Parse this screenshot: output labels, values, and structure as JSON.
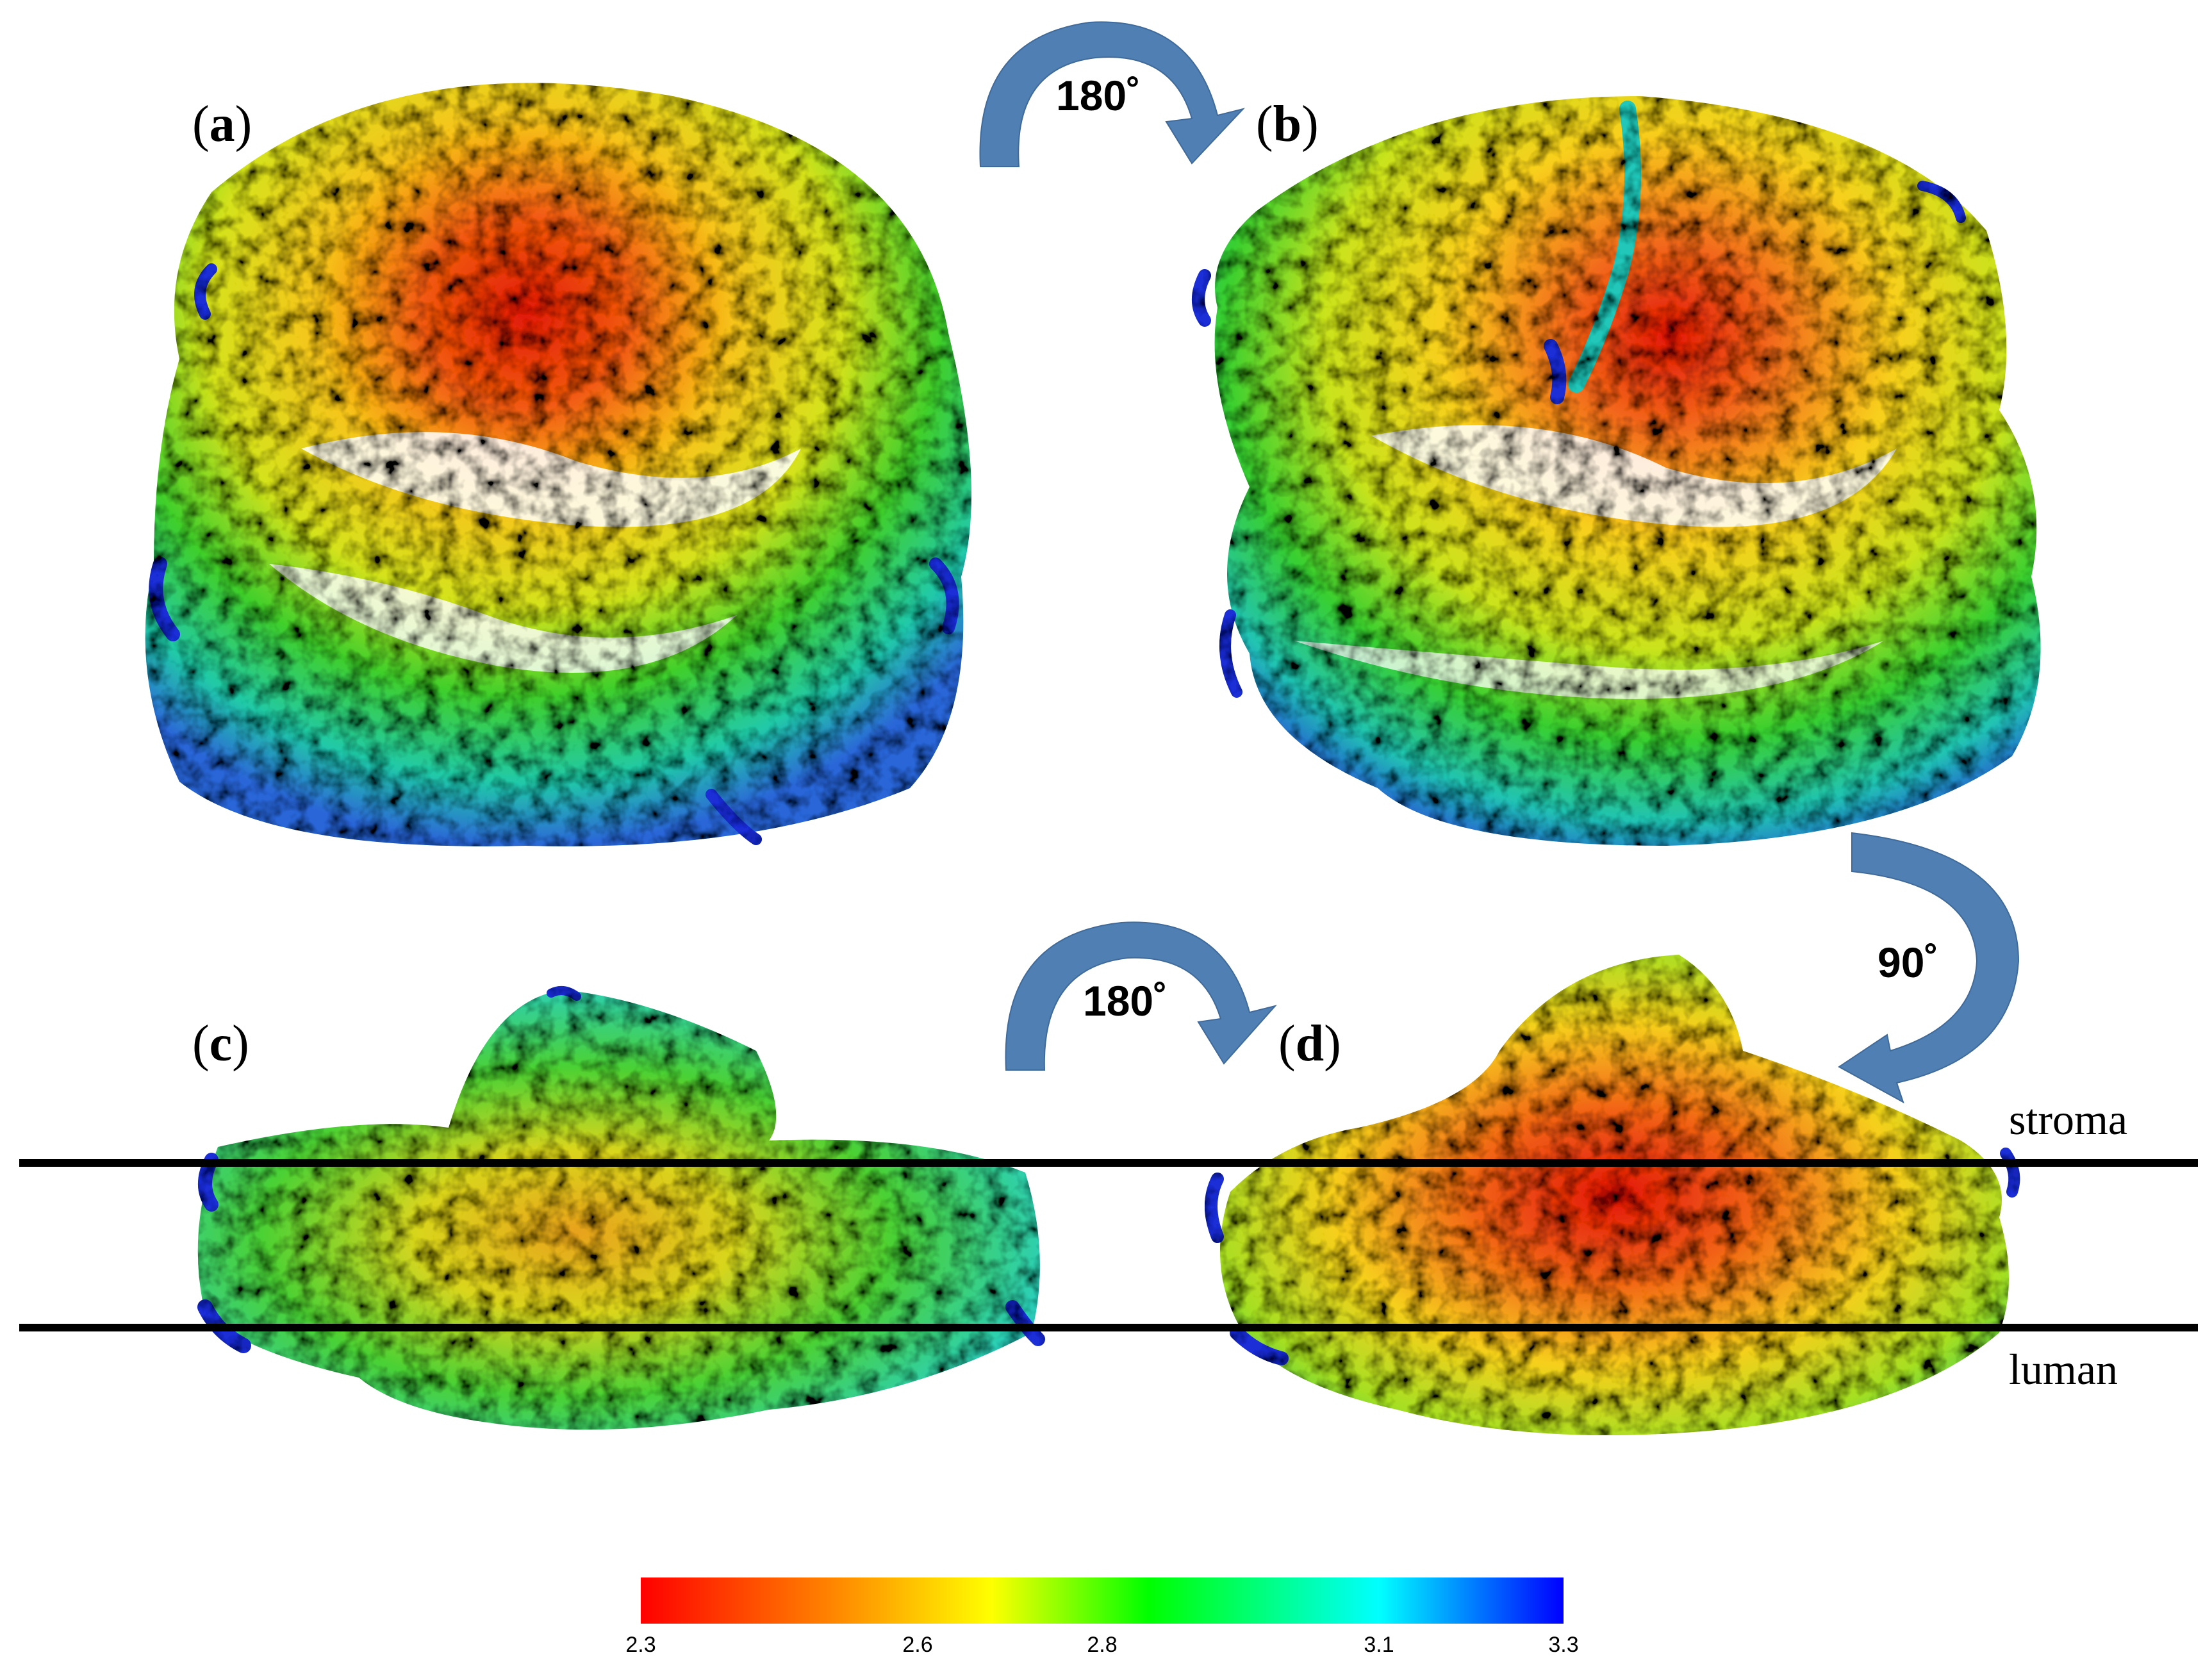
{
  "panels": [
    {
      "id": "a",
      "letter": "a"
    },
    {
      "id": "b",
      "letter": "b"
    },
    {
      "id": "c",
      "letter": "c"
    },
    {
      "id": "d",
      "letter": "d"
    }
  ],
  "rotations": {
    "top": "180˚",
    "right": "90˚",
    "bottom": "180˚"
  },
  "membrane": {
    "upper_label": "stroma",
    "lower_label": "luman"
  },
  "colorbar": {
    "ticks": [
      {
        "label": "2.3",
        "value": 2.3
      },
      {
        "label": "2.6",
        "value": 2.6
      },
      {
        "label": "2.8",
        "value": 2.8
      },
      {
        "label": "3.1",
        "value": 3.1
      },
      {
        "label": "3.3",
        "value": 3.3
      }
    ],
    "colors": [
      "#ff0000",
      "#ff8000",
      "#ffff00",
      "#00ff00",
      "#00ffff",
      "#0000ff"
    ]
  },
  "arrow_color": "#4f7fb3"
}
